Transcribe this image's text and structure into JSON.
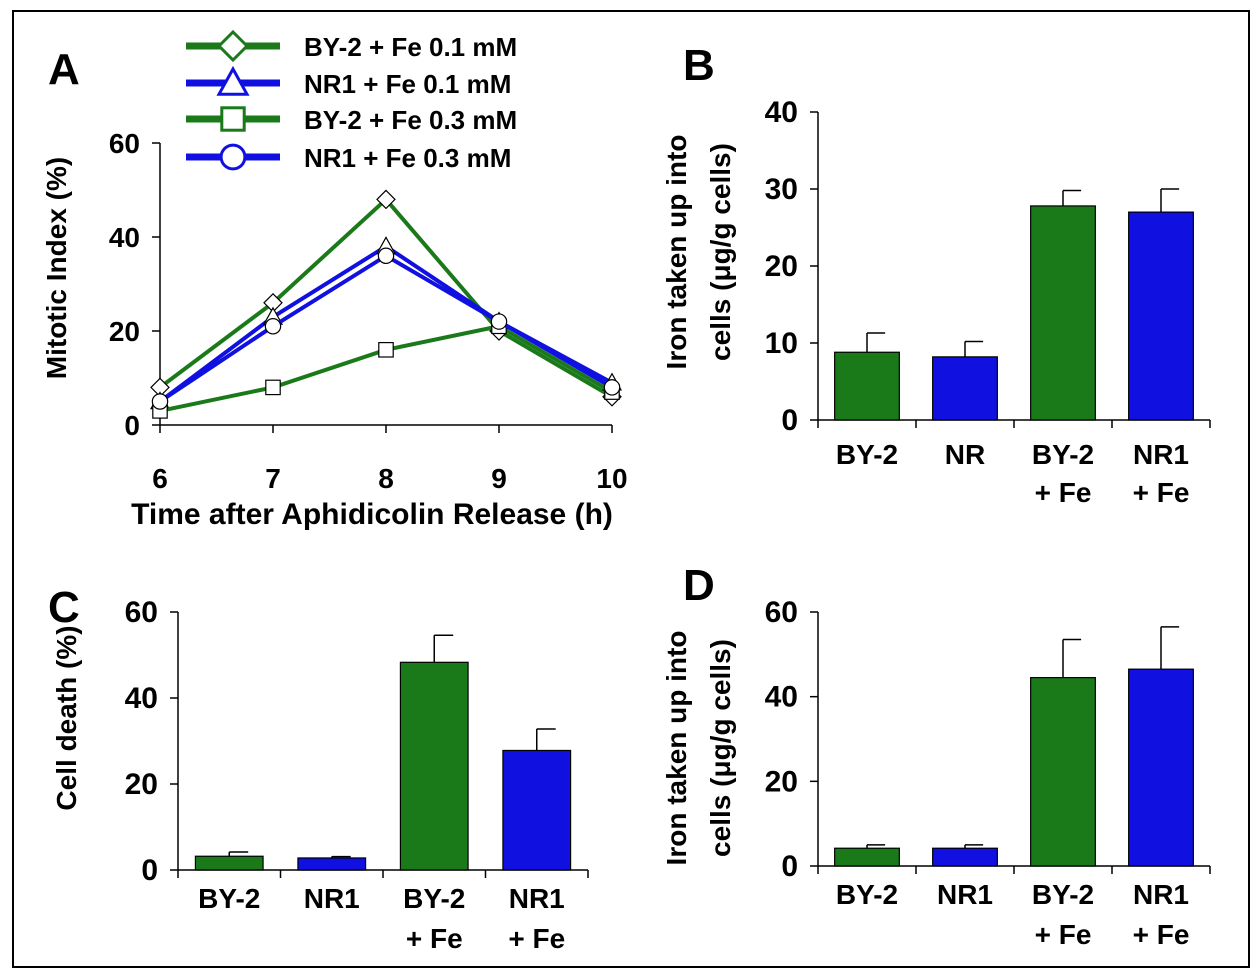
{
  "colors": {
    "green": "#1a7a1a",
    "blue": "#1010e0",
    "axis": "#000000"
  },
  "chart_data": [
    {
      "panel": "A",
      "type": "line",
      "xlabel": "Time after Aphidicolin Release (h)",
      "ylabel": "Mitotic Index (%)",
      "x": [
        6,
        7,
        8,
        9,
        10
      ],
      "xlim": [
        6,
        10
      ],
      "ylim": [
        0,
        60
      ],
      "yticks": [
        0,
        20,
        40,
        60
      ],
      "xticks": [
        6,
        7,
        8,
        9,
        10
      ],
      "legend_position": "top",
      "series": [
        {
          "name": "BY-2 + Fe 0.1 mM",
          "color": "green",
          "marker": "diamond",
          "values": [
            8,
            26,
            48,
            20,
            6
          ]
        },
        {
          "name": "NR1  + Fe 0.1 mM",
          "color": "blue",
          "marker": "triangle",
          "values": [
            5,
            23,
            38,
            22,
            9
          ]
        },
        {
          "name": "BY-2 + Fe 0.3 mM",
          "color": "green",
          "marker": "square",
          "values": [
            3,
            8,
            16,
            21,
            7
          ]
        },
        {
          "name": "NR1  + Fe 0.3 mM",
          "color": "blue",
          "marker": "circle",
          "values": [
            5,
            21,
            36,
            22,
            8
          ]
        }
      ]
    },
    {
      "panel": "B",
      "type": "bar",
      "ylabel_lines": [
        "Iron taken up into",
        "cells (μg/g cells)"
      ],
      "ylim": [
        0,
        40
      ],
      "yticks": [
        0,
        10,
        20,
        30,
        40
      ],
      "categories": [
        [
          "BY-2"
        ],
        [
          "NR"
        ],
        [
          "BY-2",
          "+ Fe"
        ],
        [
          "NR1",
          "+ Fe"
        ]
      ],
      "values": [
        8.8,
        8.2,
        27.8,
        27.0
      ],
      "errors": [
        2.5,
        2.0,
        2.0,
        3.0
      ],
      "colors": [
        "green",
        "blue",
        "green",
        "blue"
      ]
    },
    {
      "panel": "C",
      "type": "bar",
      "ylabel_lines": [
        "Cell death (%)"
      ],
      "ylim": [
        0,
        60
      ],
      "yticks": [
        0,
        20,
        40,
        60
      ],
      "categories": [
        [
          "BY-2"
        ],
        [
          "NR1"
        ],
        [
          "BY-2",
          "+ Fe"
        ],
        [
          "NR1",
          "+ Fe"
        ]
      ],
      "values": [
        3.2,
        2.8,
        48.3,
        27.8
      ],
      "errors": [
        1.0,
        0.3,
        6.3,
        5.0
      ],
      "colors": [
        "green",
        "blue",
        "green",
        "blue"
      ]
    },
    {
      "panel": "D",
      "type": "bar",
      "ylabel_lines": [
        "Iron taken up into",
        "cells (μg/g cells)"
      ],
      "ylim": [
        0,
        60
      ],
      "yticks": [
        0,
        20,
        40,
        60
      ],
      "categories": [
        [
          "BY-2"
        ],
        [
          "NR1"
        ],
        [
          "BY-2",
          "+ Fe"
        ],
        [
          "NR1",
          "+ Fe"
        ]
      ],
      "values": [
        4.2,
        4.2,
        44.5,
        46.5
      ],
      "errors": [
        0.8,
        0.8,
        9.0,
        10.0
      ],
      "colors": [
        "green",
        "blue",
        "green",
        "blue"
      ]
    }
  ]
}
